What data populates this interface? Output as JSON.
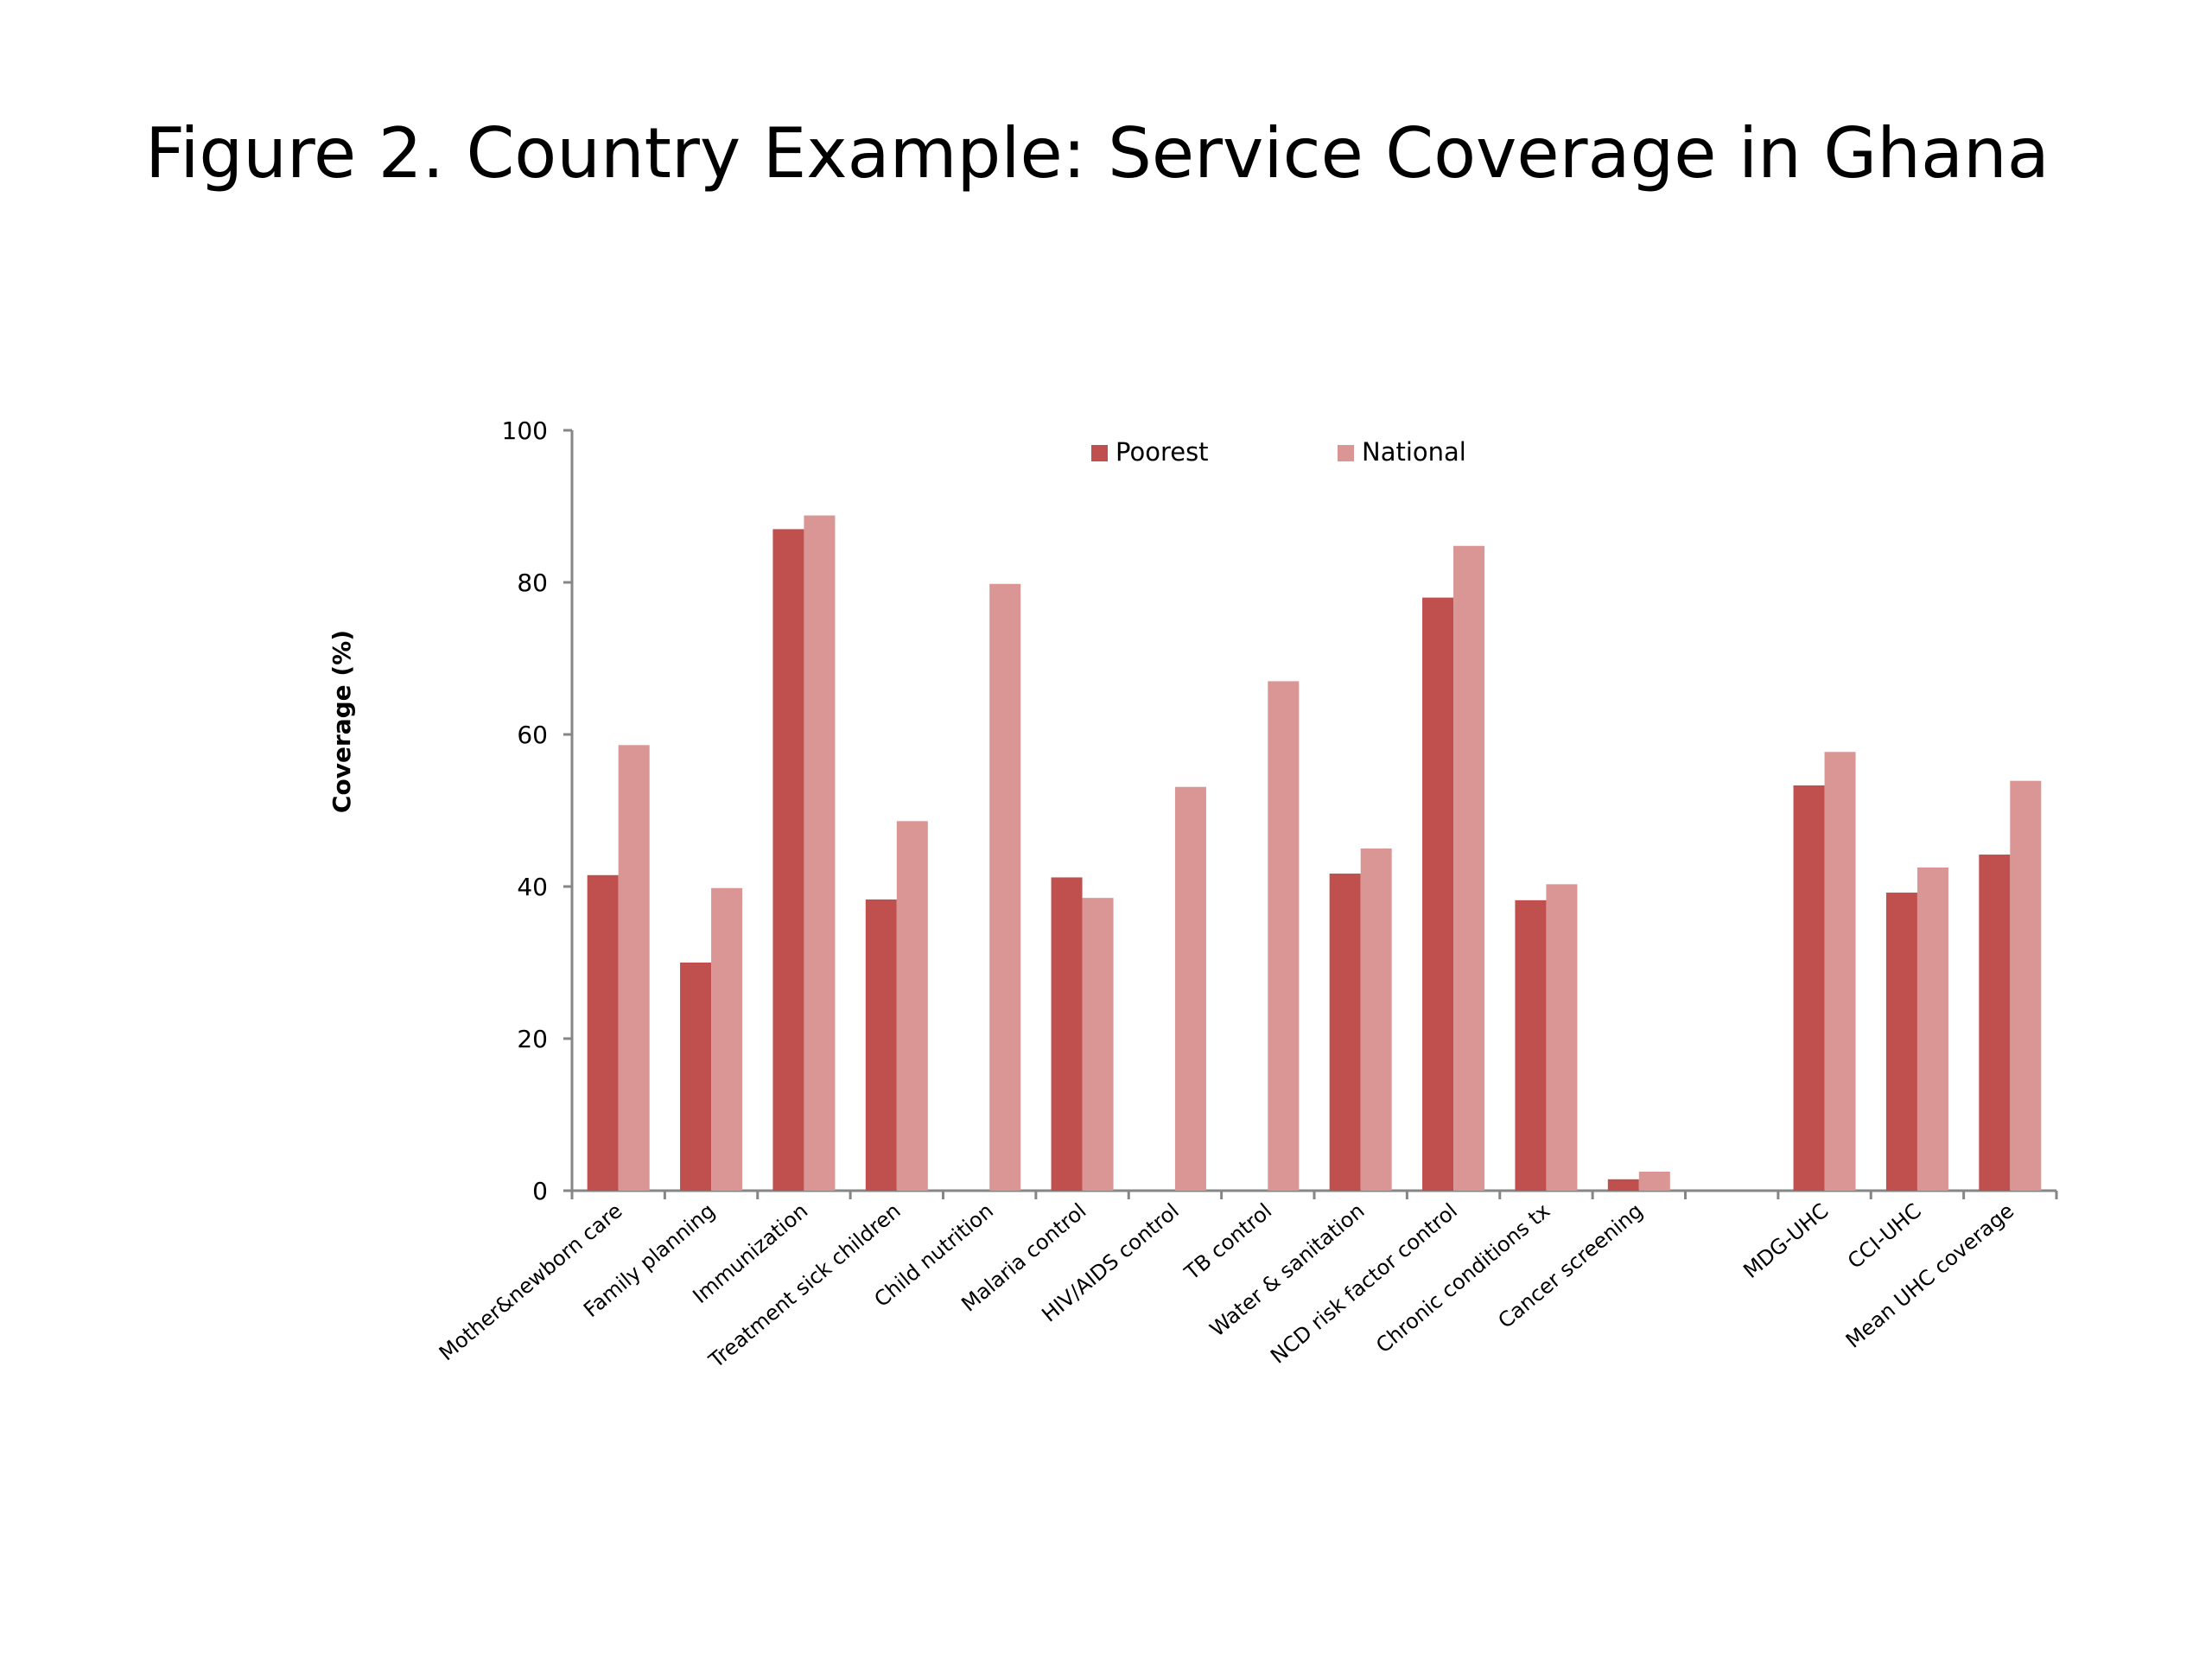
{
  "slide": {
    "title": "Figure 2. Country Example:  Service Coverage in Ghana"
  },
  "chart_data": {
    "type": "bar",
    "title": "",
    "xlabel": "",
    "ylabel": "Coverage (%)",
    "ylim": [
      0,
      100
    ],
    "yticks": [
      0,
      20,
      40,
      60,
      80,
      100
    ],
    "grid": false,
    "legend_position": "top-center",
    "categories": [
      "Mother&newborn care",
      "Family planning",
      "Immunization",
      "Treatment sick children",
      "Child nutrition",
      "Malaria control",
      "HIV/AIDS control",
      "TB control",
      "Water & sanitation",
      "NCD risk factor control",
      "Chronic conditions tx",
      "Cancer screening",
      "",
      "MDG-UHC",
      "CCI-UHC",
      "Mean UHC coverage"
    ],
    "series": [
      {
        "name": "Poorest",
        "color": "#c0504d",
        "values": [
          41.5,
          30,
          87,
          38.3,
          null,
          41.2,
          null,
          null,
          41.7,
          78,
          38.2,
          1.5,
          null,
          53.3,
          39.2,
          44.2
        ]
      },
      {
        "name": "National",
        "color": "#d99694",
        "values": [
          58.6,
          39.8,
          88.8,
          48.6,
          79.8,
          38.5,
          53.1,
          67,
          45,
          84.8,
          40.3,
          2.5,
          null,
          57.7,
          42.5,
          53.9
        ]
      }
    ]
  }
}
